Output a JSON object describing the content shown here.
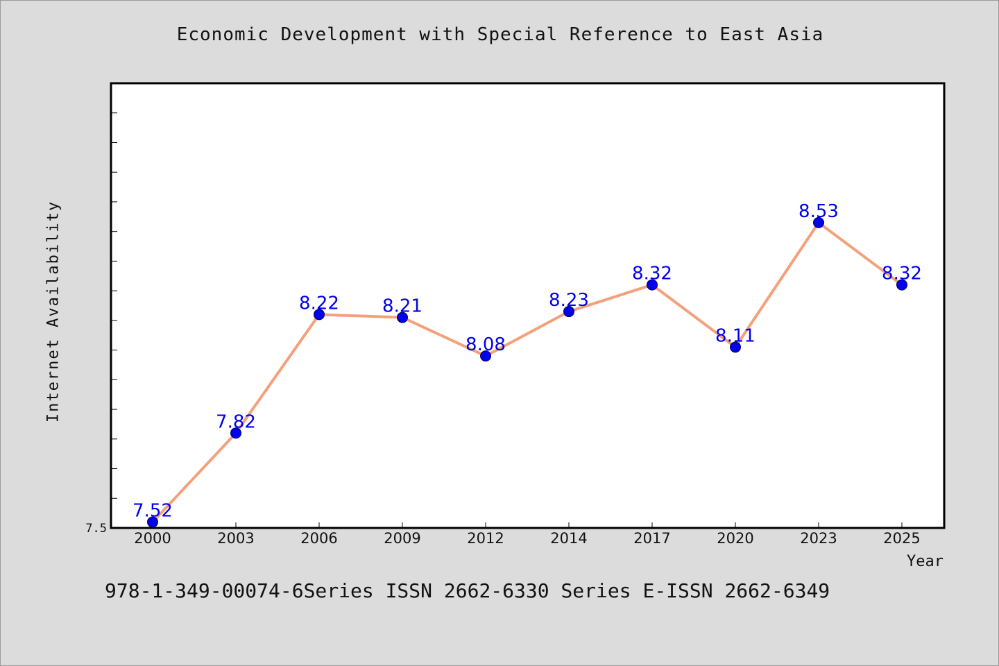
{
  "chart_data": {
    "type": "line",
    "title": "Economic Development with Special Reference to East Asia",
    "xlabel": "Year",
    "ylabel": "Internet Availability",
    "categories": [
      "2000",
      "2003",
      "2006",
      "2009",
      "2012",
      "2014",
      "2017",
      "2020",
      "2023",
      "2025"
    ],
    "series": [
      {
        "values": [
          7.52,
          7.82,
          8.22,
          8.21,
          8.08,
          8.23,
          8.32,
          8.11,
          8.53,
          8.32
        ],
        "labels": [
          "7.52",
          "7.82",
          "8.22",
          "8.21",
          "8.08",
          "8.23",
          "8.32",
          "8.11",
          "8.53",
          "8.32"
        ],
        "line_color": "#f4a07a",
        "marker_color": "#0000ee",
        "label_color": "#0000ee"
      }
    ],
    "ylim": [
      7.5,
      9.0
    ],
    "yticks_labeled": [
      "7.5"
    ],
    "grid": false,
    "legend": "none"
  },
  "footnote": "978-1-349-00074-6Series ISSN 2662-6330 Series E-ISSN 2662-6349",
  "colors": {
    "background": "#dcdcdc",
    "plot_background": "#ffffff",
    "axis": "#000000"
  }
}
